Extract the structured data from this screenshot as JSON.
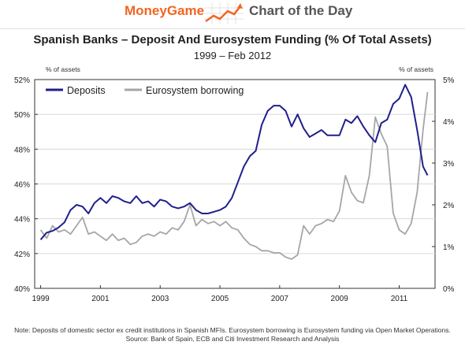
{
  "banner": {
    "brand": "MoneyGame",
    "label": "Chart of the Day",
    "colors": {
      "brand": "#f26522",
      "label": "#555555"
    }
  },
  "chart_data": {
    "type": "line",
    "title": "Spanish Banks – Deposit And Eurosystem Funding (% Of Total Assets)",
    "subtitle": "1999 – Feb 2012",
    "left_axis_unit": "% of assets",
    "right_axis_unit": "% of assets",
    "xlim": [
      1998.8,
      2012.2
    ],
    "x_ticks": [
      1999,
      2001,
      2003,
      2005,
      2007,
      2009,
      2011
    ],
    "x_tick_labels": [
      "1999",
      "2001",
      "2003",
      "2005",
      "2007",
      "2009",
      "2011"
    ],
    "ylim_left": [
      40,
      52
    ],
    "y_ticks_left": [
      40,
      42,
      44,
      46,
      48,
      50,
      52
    ],
    "y_tick_labels_left": [
      "40%",
      "42%",
      "44%",
      "46%",
      "48%",
      "50%",
      "52%"
    ],
    "ylim_right": [
      0,
      5
    ],
    "y_ticks_right": [
      0,
      1,
      2,
      3,
      4,
      5
    ],
    "y_tick_labels_right": [
      "0%",
      "1%",
      "2%",
      "3%",
      "4%",
      "5%"
    ],
    "grid": true,
    "legend_position": "top-left",
    "series": [
      {
        "name": "Deposits",
        "axis": "left",
        "color": "#1f1f8c",
        "x": [
          1999.0,
          1999.2,
          1999.4,
          1999.6,
          1999.8,
          2000.0,
          2000.2,
          2000.4,
          2000.6,
          2000.8,
          2001.0,
          2001.2,
          2001.4,
          2001.6,
          2001.8,
          2002.0,
          2002.2,
          2002.4,
          2002.6,
          2002.8,
          2003.0,
          2003.2,
          2003.4,
          2003.6,
          2003.8,
          2004.0,
          2004.2,
          2004.4,
          2004.6,
          2004.8,
          2005.0,
          2005.2,
          2005.4,
          2005.6,
          2005.8,
          2006.0,
          2006.2,
          2006.4,
          2006.6,
          2006.8,
          2007.0,
          2007.2,
          2007.4,
          2007.6,
          2007.8,
          2008.0,
          2008.2,
          2008.4,
          2008.6,
          2008.8,
          2009.0,
          2009.2,
          2009.4,
          2009.6,
          2009.8,
          2010.0,
          2010.2,
          2010.4,
          2010.6,
          2010.8,
          2011.0,
          2011.2,
          2011.4,
          2011.6,
          2011.8,
          2011.95
        ],
        "values": [
          42.8,
          43.2,
          43.3,
          43.5,
          43.8,
          44.5,
          44.8,
          44.7,
          44.3,
          44.9,
          45.2,
          44.9,
          45.3,
          45.2,
          45.0,
          44.9,
          45.3,
          44.9,
          45.0,
          44.7,
          45.1,
          45.0,
          44.7,
          44.6,
          44.7,
          44.9,
          44.5,
          44.3,
          44.3,
          44.4,
          44.5,
          44.7,
          45.2,
          46.1,
          47.0,
          47.6,
          47.9,
          49.4,
          50.2,
          50.5,
          50.5,
          50.2,
          49.3,
          50.0,
          49.2,
          48.7,
          48.9,
          49.1,
          48.8,
          48.8,
          48.8,
          49.7,
          49.5,
          49.9,
          49.3,
          48.8,
          48.4,
          49.5,
          49.7,
          50.6,
          50.9,
          51.7,
          51.0,
          49.1,
          47.0,
          46.5
        ]
      },
      {
        "name": "Eurosystem borrowing",
        "axis": "right",
        "color": "#a6a6a6",
        "x": [
          1999.0,
          1999.2,
          1999.4,
          1999.6,
          1999.8,
          2000.0,
          2000.2,
          2000.4,
          2000.6,
          2000.8,
          2001.0,
          2001.2,
          2001.4,
          2001.6,
          2001.8,
          2002.0,
          2002.2,
          2002.4,
          2002.6,
          2002.8,
          2003.0,
          2003.2,
          2003.4,
          2003.6,
          2003.8,
          2004.0,
          2004.2,
          2004.4,
          2004.6,
          2004.8,
          2005.0,
          2005.2,
          2005.4,
          2005.6,
          2005.8,
          2006.0,
          2006.2,
          2006.4,
          2006.6,
          2006.8,
          2007.0,
          2007.2,
          2007.4,
          2007.6,
          2007.8,
          2008.0,
          2008.2,
          2008.4,
          2008.6,
          2008.8,
          2009.0,
          2009.2,
          2009.4,
          2009.6,
          2009.8,
          2010.0,
          2010.2,
          2010.4,
          2010.6,
          2010.8,
          2011.0,
          2011.2,
          2011.4,
          2011.6,
          2011.8,
          2011.95
        ],
        "values": [
          1.4,
          1.2,
          1.5,
          1.35,
          1.4,
          1.3,
          1.5,
          1.7,
          1.3,
          1.35,
          1.25,
          1.15,
          1.3,
          1.15,
          1.2,
          1.05,
          1.1,
          1.25,
          1.3,
          1.25,
          1.35,
          1.3,
          1.45,
          1.4,
          1.6,
          2.0,
          1.5,
          1.65,
          1.55,
          1.6,
          1.5,
          1.6,
          1.45,
          1.4,
          1.2,
          1.05,
          1.0,
          0.9,
          0.9,
          0.85,
          0.85,
          0.75,
          0.7,
          0.8,
          1.5,
          1.3,
          1.5,
          1.55,
          1.65,
          1.6,
          1.85,
          2.7,
          2.3,
          2.1,
          2.05,
          2.7,
          4.1,
          3.7,
          3.4,
          1.8,
          1.4,
          1.3,
          1.55,
          2.3,
          3.8,
          4.7
        ]
      }
    ]
  },
  "footnote": {
    "line1": "Note: Deposits of domestic sector ex credit institutions in Spanish MFIs. Eurosystem borrowing is Eurosystem funding via Open Market Operations.",
    "line2": "Source: Bank of Spain, ECB and Citi Investment Research and Analysis"
  }
}
